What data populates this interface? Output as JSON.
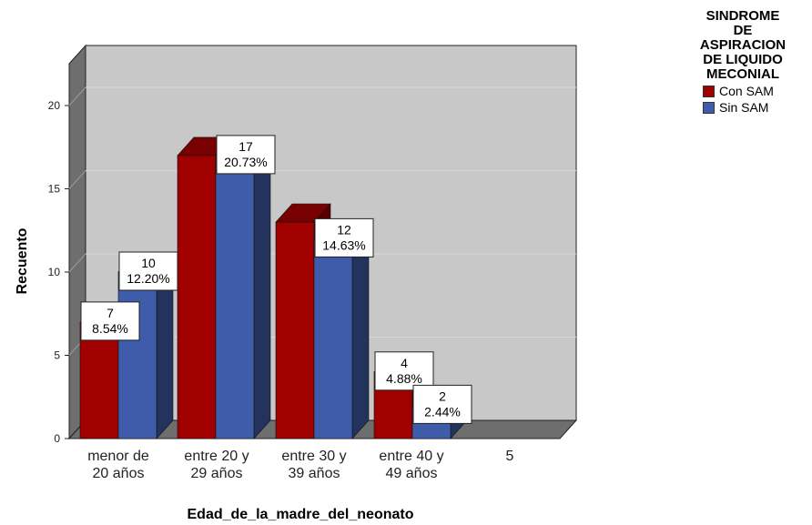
{
  "chart_data": {
    "type": "bar",
    "style": "3d-clustered",
    "xlabel": "Edad_de_la_madre_del_neonato",
    "ylabel": "Recuento",
    "categories": [
      "menor de\n20 años",
      "entre 20 y\n29 años",
      "entre 30 y\n39 años",
      "entre 40 y\n49 años",
      "5"
    ],
    "ylim": [
      0,
      22
    ],
    "yticks": [
      0,
      5,
      10,
      15,
      20
    ],
    "grid": true,
    "legend": {
      "title": "SINDROME\nDE\nASPIRACION\nDE LIQUIDO\nMECONIAL",
      "placement": "top-right"
    },
    "series": [
      {
        "name": "Con SAM",
        "color": "#a00000",
        "values": [
          7,
          17,
          13,
          4,
          0
        ],
        "labels": [
          "7\n8.54%",
          "",
          "",
          "4\n4.88%",
          ""
        ]
      },
      {
        "name": "Sin SAM",
        "color": "#3f5caa",
        "values": [
          10,
          17,
          12,
          2,
          0
        ],
        "labels": [
          "10\n12.20%",
          "17\n20.73%",
          "12\n14.63%",
          "2\n2.44%",
          ""
        ]
      }
    ]
  }
}
